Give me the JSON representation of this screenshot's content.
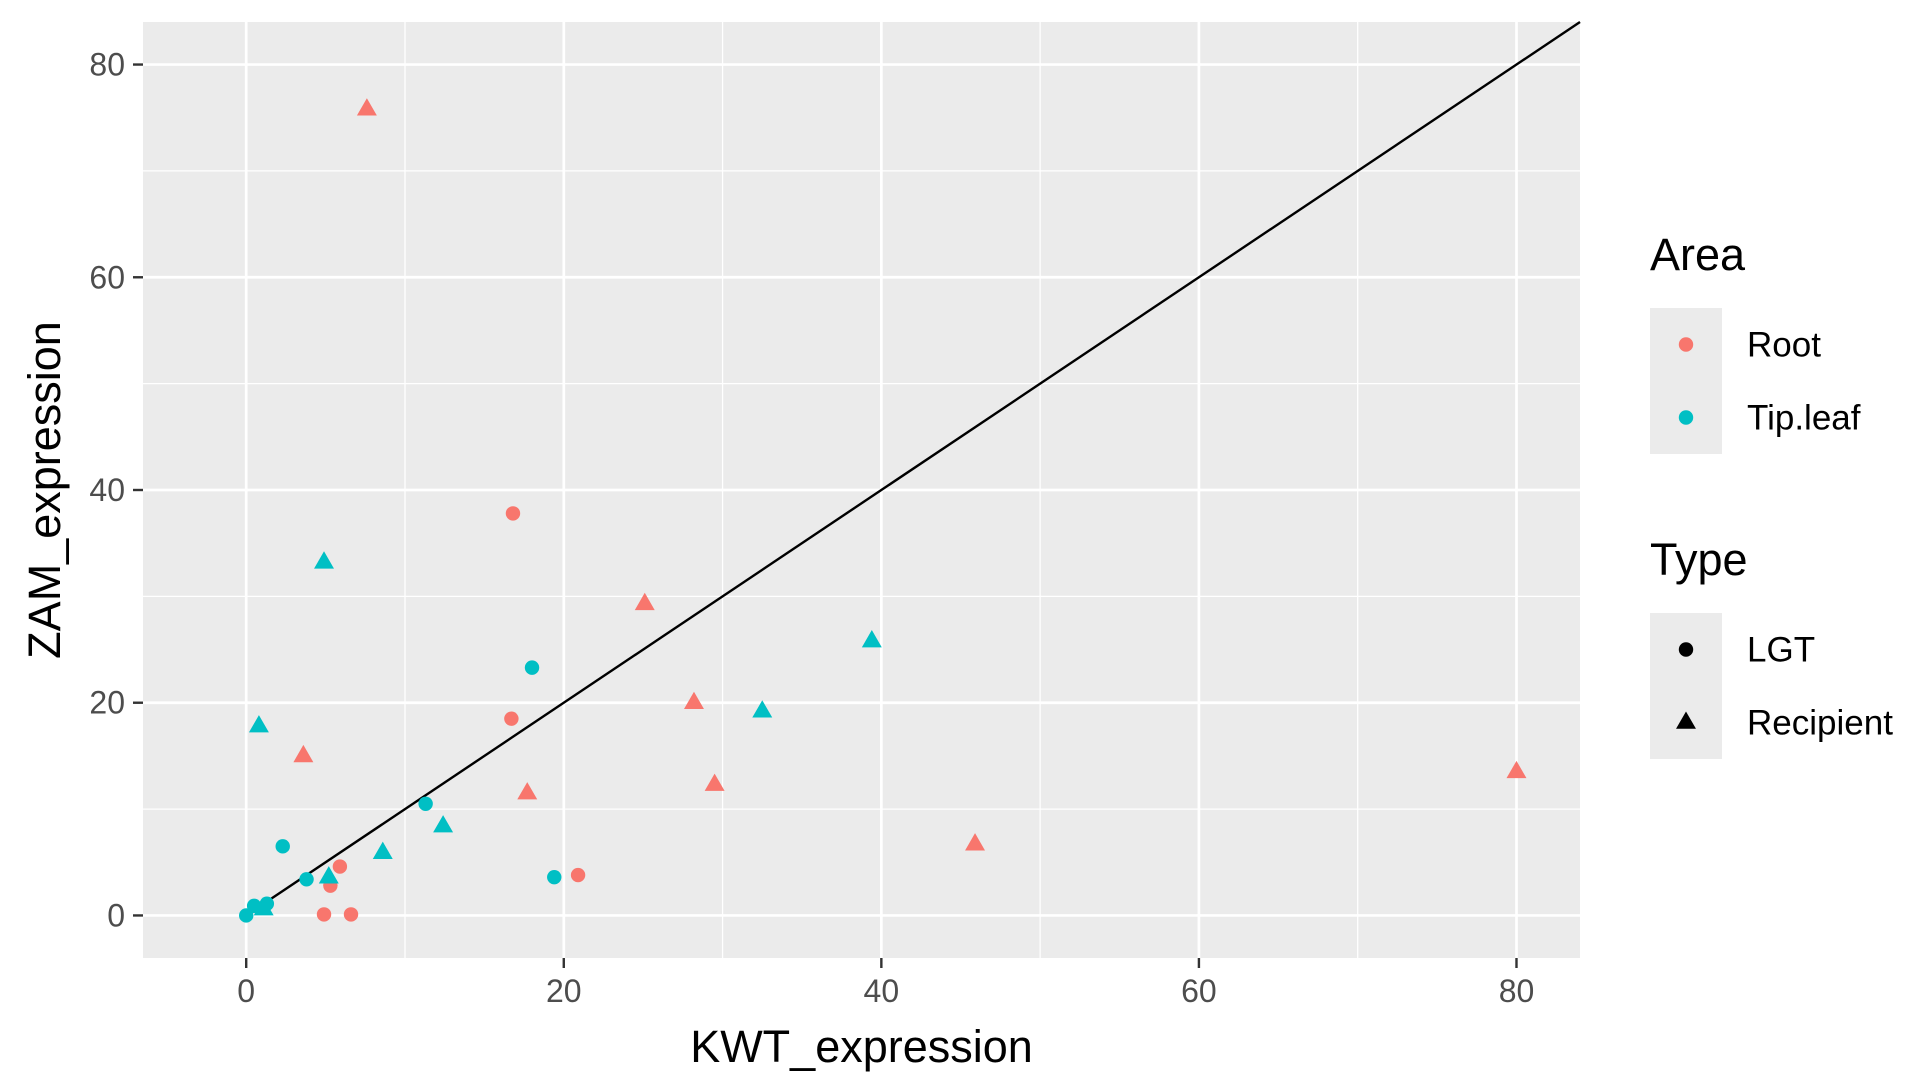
{
  "chart_data": {
    "type": "scatter",
    "title": "",
    "xlabel": "KWT_expression",
    "ylabel": "ZAM_expression",
    "xlim": [
      -6.5,
      84
    ],
    "ylim": [
      -4,
      84
    ],
    "x_ticks": [
      0,
      20,
      40,
      60,
      80
    ],
    "y_ticks": [
      0,
      20,
      40,
      60,
      80
    ],
    "x_tick_labels": [
      "0",
      "20",
      "40",
      "60",
      "80"
    ],
    "y_tick_labels": [
      "0",
      "20",
      "40",
      "60",
      "80"
    ],
    "grid": true,
    "background": "#ebebeb",
    "reference_line": {
      "slope": 1,
      "intercept": 0,
      "x_start": 0
    },
    "legend": {
      "position": "right",
      "color": {
        "title": "Area",
        "entries": [
          {
            "label": "Root",
            "color": "#f8766d"
          },
          {
            "label": "Tip.leaf",
            "color": "#00bfc4"
          }
        ]
      },
      "shape": {
        "title": "Type",
        "entries": [
          {
            "label": "LGT",
            "shape": "circle"
          },
          {
            "label": "Recipient",
            "shape": "triangle"
          }
        ]
      }
    },
    "series": [
      {
        "name": "Root",
        "color": "#f8766d",
        "points": [
          {
            "x": 16.8,
            "y": 37.8,
            "shape": "circle"
          },
          {
            "x": 16.7,
            "y": 18.5,
            "shape": "circle"
          },
          {
            "x": 20.9,
            "y": 3.8,
            "shape": "circle"
          },
          {
            "x": 5.9,
            "y": 4.6,
            "shape": "circle"
          },
          {
            "x": 5.3,
            "y": 2.8,
            "shape": "circle"
          },
          {
            "x": 4.9,
            "y": 0.1,
            "shape": "circle"
          },
          {
            "x": 6.6,
            "y": 0.1,
            "shape": "circle"
          },
          {
            "x": 7.6,
            "y": 75.8,
            "shape": "triangle"
          },
          {
            "x": 25.1,
            "y": 29.3,
            "shape": "triangle"
          },
          {
            "x": 28.2,
            "y": 20.0,
            "shape": "triangle"
          },
          {
            "x": 29.5,
            "y": 12.3,
            "shape": "triangle"
          },
          {
            "x": 17.7,
            "y": 11.5,
            "shape": "triangle"
          },
          {
            "x": 3.6,
            "y": 15.0,
            "shape": "triangle"
          },
          {
            "x": 45.9,
            "y": 6.7,
            "shape": "triangle"
          },
          {
            "x": 80.0,
            "y": 13.5,
            "shape": "triangle"
          }
        ]
      },
      {
        "name": "Tip.leaf",
        "color": "#00bfc4",
        "points": [
          {
            "x": 18.0,
            "y": 23.3,
            "shape": "circle"
          },
          {
            "x": 11.3,
            "y": 10.5,
            "shape": "circle"
          },
          {
            "x": 2.3,
            "y": 6.5,
            "shape": "circle"
          },
          {
            "x": 3.8,
            "y": 3.4,
            "shape": "circle"
          },
          {
            "x": 19.4,
            "y": 3.6,
            "shape": "circle"
          },
          {
            "x": 1.3,
            "y": 1.1,
            "shape": "circle"
          },
          {
            "x": 0.5,
            "y": 0.9,
            "shape": "circle"
          },
          {
            "x": 0.0,
            "y": 0.0,
            "shape": "circle"
          },
          {
            "x": 4.9,
            "y": 33.2,
            "shape": "triangle"
          },
          {
            "x": 0.8,
            "y": 17.8,
            "shape": "triangle"
          },
          {
            "x": 39.4,
            "y": 25.8,
            "shape": "triangle"
          },
          {
            "x": 32.5,
            "y": 19.2,
            "shape": "triangle"
          },
          {
            "x": 12.4,
            "y": 8.4,
            "shape": "triangle"
          },
          {
            "x": 8.6,
            "y": 5.9,
            "shape": "triangle"
          },
          {
            "x": 5.2,
            "y": 3.6,
            "shape": "triangle"
          },
          {
            "x": 1.1,
            "y": 0.6,
            "shape": "triangle"
          }
        ]
      }
    ]
  }
}
